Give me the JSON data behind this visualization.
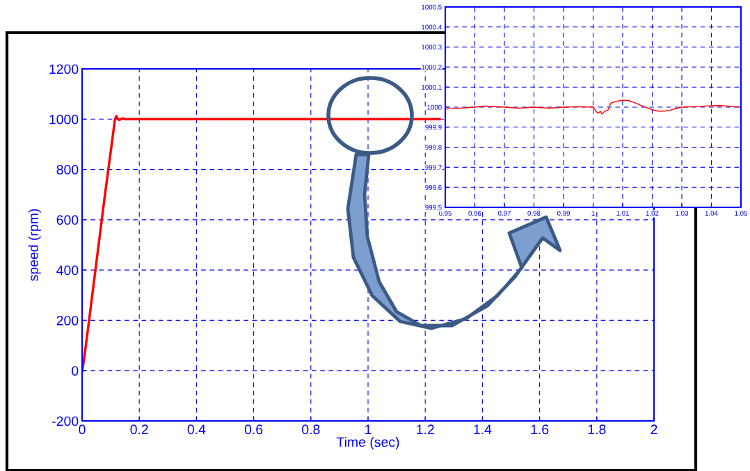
{
  "chart_data": [
    {
      "type": "line",
      "xlabel": "Time (sec)",
      "ylabel": "speed (rpm)",
      "xlim": [
        0,
        2
      ],
      "ylim": [
        -200,
        1200
      ],
      "xticks": [
        0,
        0.2,
        0.4,
        0.6,
        0.8,
        1,
        1.2,
        1.4,
        1.6,
        1.8,
        2
      ],
      "yticks": [
        -200,
        0,
        200,
        400,
        600,
        800,
        1000,
        1200
      ],
      "grid": true,
      "legend": false,
      "marker": "none",
      "line_style": "solid",
      "series": [
        {
          "color": "#ff0000",
          "x": [
            0,
            0.005,
            0.02,
            0.04,
            0.06,
            0.08,
            0.1,
            0.115,
            0.12,
            0.125,
            0.13,
            0.14,
            0.15,
            0.3,
            0.6,
            0.9,
            1.25
          ],
          "values": [
            0,
            30,
            160,
            340,
            520,
            700,
            870,
            1000,
            1012,
            1000,
            997,
            1003,
            1000,
            1000,
            1000,
            1000,
            1000
          ]
        }
      ]
    },
    {
      "type": "line",
      "xlim": [
        0.95,
        1.05
      ],
      "ylim": [
        999.5,
        1000.5
      ],
      "xticks": [
        0.95,
        0.96,
        0.97,
        0.98,
        0.99,
        1,
        1.01,
        1.02,
        1.03,
        1.04,
        1.05
      ],
      "yticks": [
        999.5,
        999.6,
        999.7,
        999.8,
        999.9,
        1000,
        1000.1,
        1000.2,
        1000.3,
        1000.4,
        1000.5
      ],
      "grid": true,
      "legend": false,
      "marker": "none",
      "line_style": "solid",
      "series": [
        {
          "color": "#ff0000",
          "x": [
            0.95,
            0.96,
            0.963,
            0.97,
            0.975,
            0.98,
            0.985,
            0.99,
            0.995,
            1.0,
            1.0015,
            1.0025,
            1.003,
            1.004,
            1.005,
            1.006,
            1.008,
            1.01,
            1.012,
            1.014,
            1.016,
            1.018,
            1.02,
            1.022,
            1.024,
            1.026,
            1.028,
            1.03,
            1.035,
            1.04,
            1.043,
            1.05
          ],
          "values": [
            999.99,
            1000.0,
            1000.005,
            1000.0,
            999.995,
            1000.0,
            999.995,
            1000.0,
            1000.002,
            1000.0,
            999.97,
            999.978,
            999.966,
            999.98,
            999.985,
            1000.02,
            1000.03,
            1000.034,
            1000.033,
            1000.022,
            1000.01,
            999.999,
            999.987,
            999.98,
            999.98,
            999.985,
            999.993,
            1000.0,
            1000.003,
            1000.007,
            1000.008,
            1000.0
          ]
        }
      ]
    }
  ]
}
